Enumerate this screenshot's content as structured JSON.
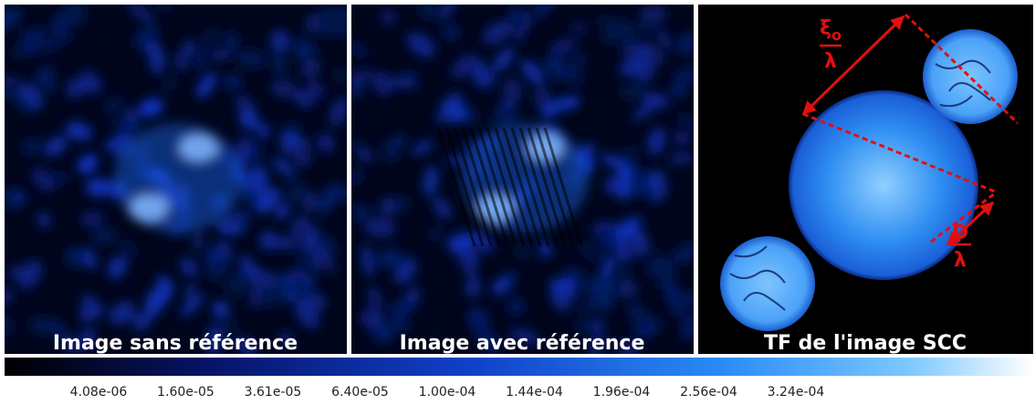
{
  "panels": [
    {
      "caption": "Image sans référence"
    },
    {
      "caption": "Image avec référence"
    },
    {
      "caption": "TF de l'image SCC"
    }
  ],
  "annotations": {
    "xi_symbol": "ξ",
    "xi_subscript": "o",
    "xi_denominator": "λ",
    "d_numerator": "D",
    "d_denominator": "λ"
  },
  "colorbar": {
    "ticks": [
      "4.08e-06",
      "1.60e-05",
      "3.61e-05",
      "6.40e-05",
      "1.00e-04",
      "1.44e-04",
      "1.96e-04",
      "2.56e-04",
      "3.24e-04"
    ]
  }
}
